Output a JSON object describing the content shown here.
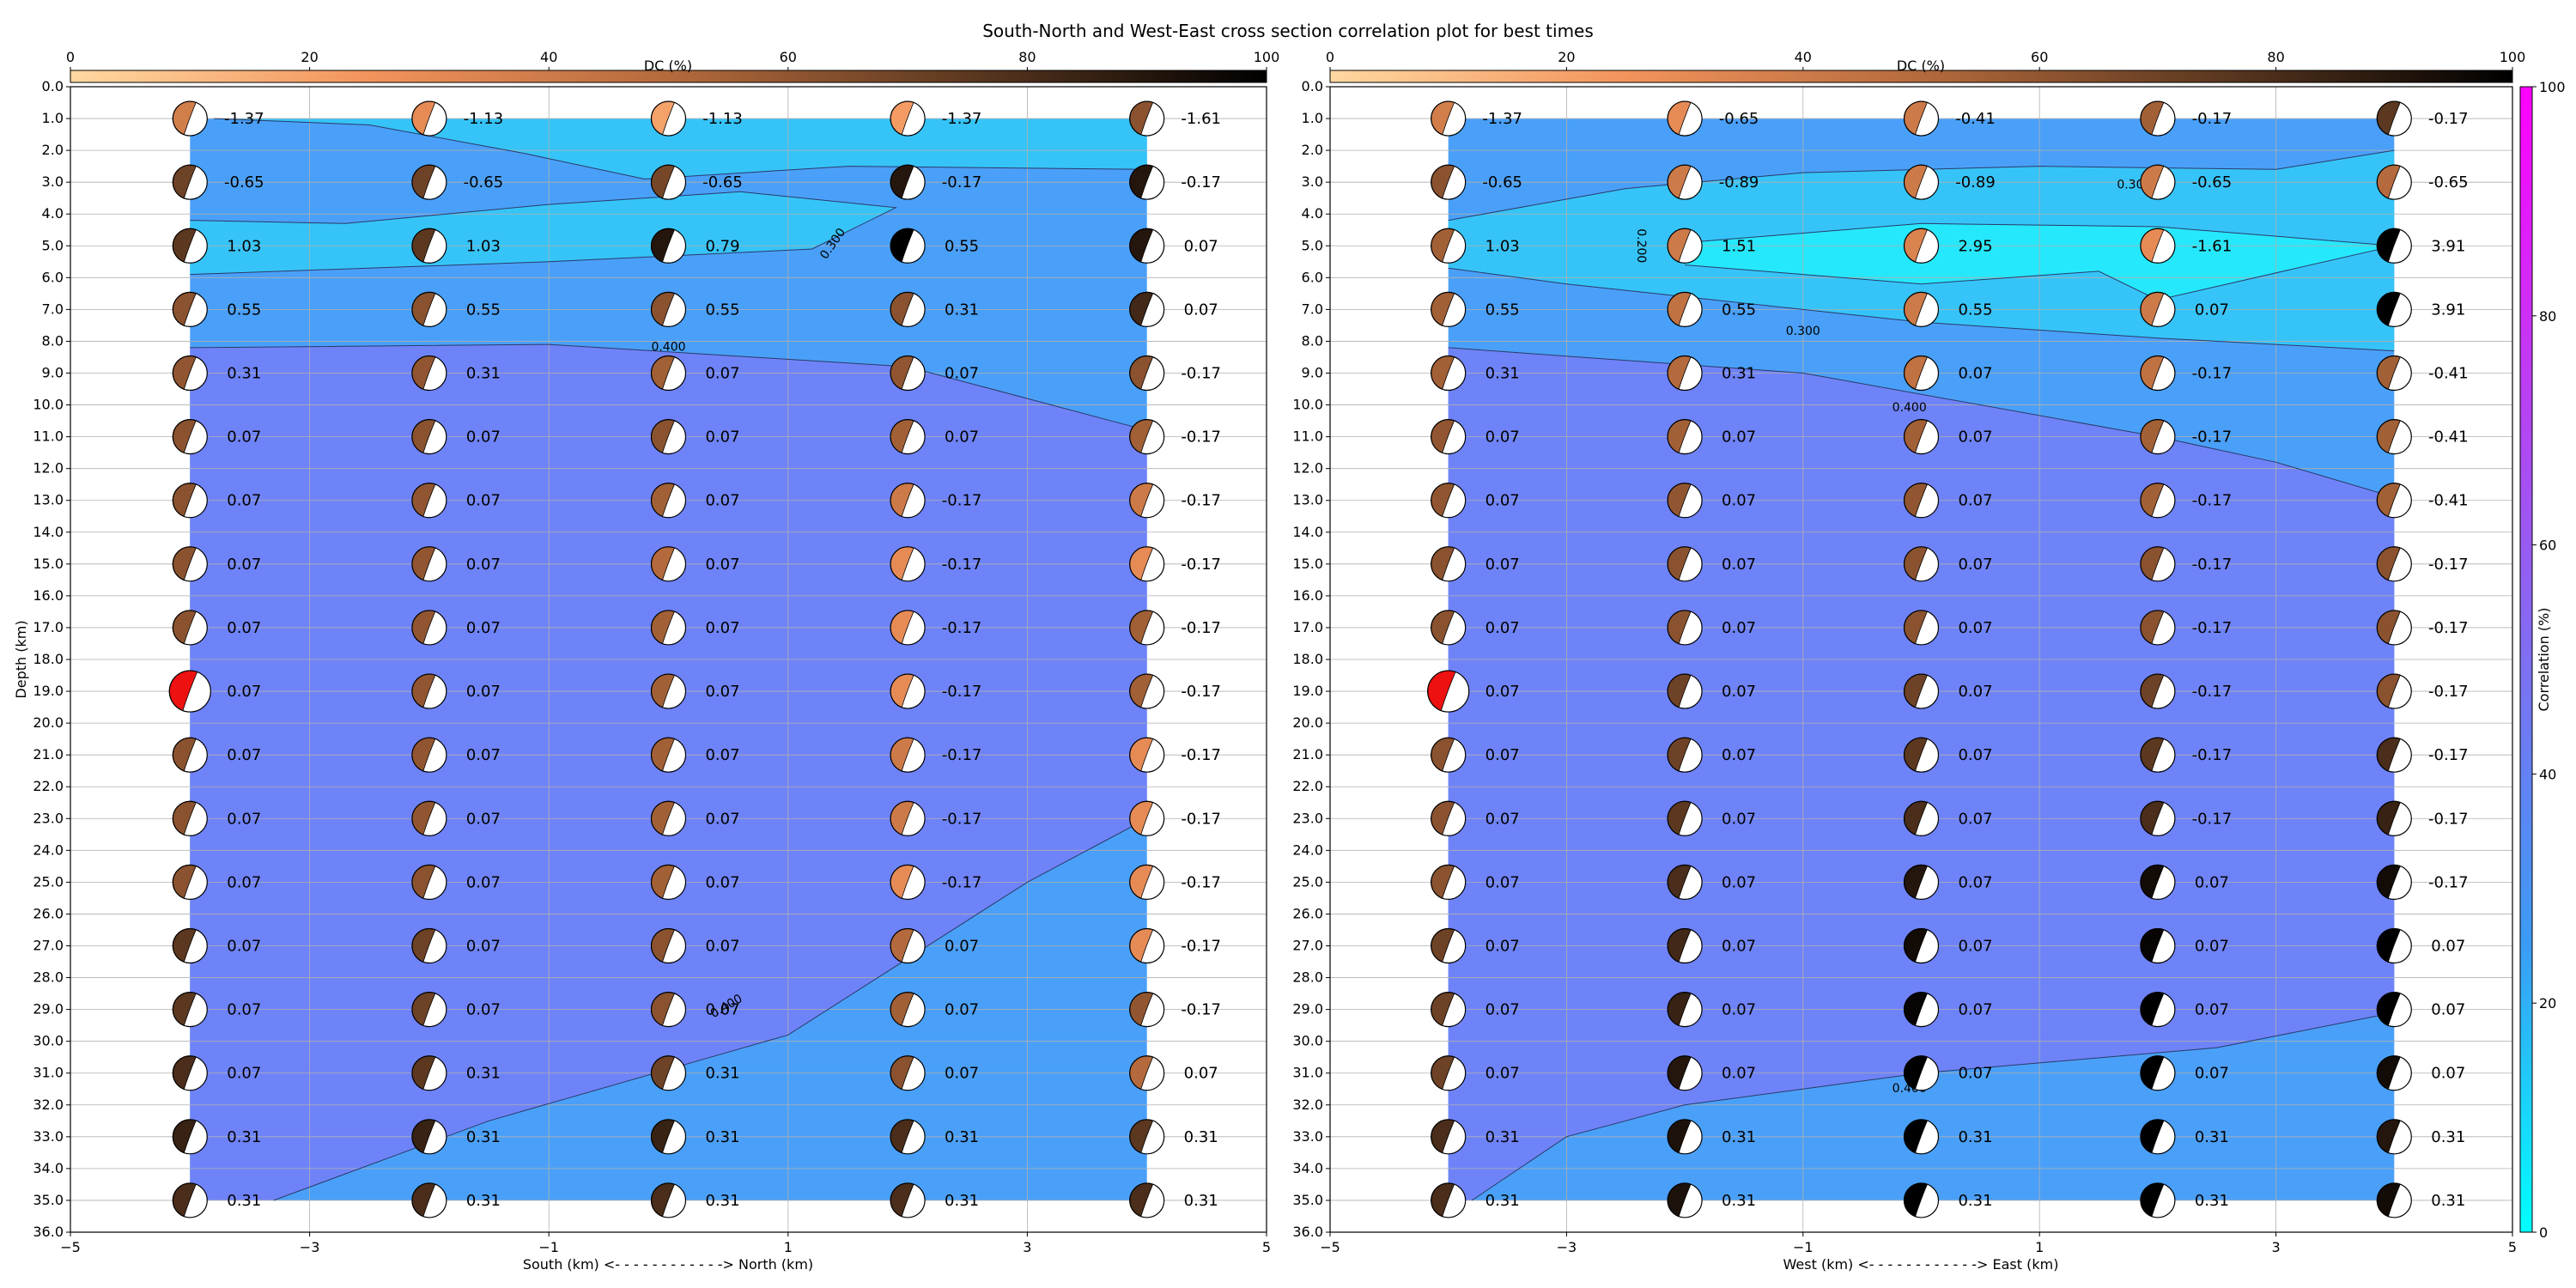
{
  "title": "South-North and West-East cross section correlation plot for best times",
  "colors": {
    "background": "#ffffff",
    "grid": "#b0b0b0",
    "fill_030_040": "#4aa0f8",
    "fill_040_plus": "#6f83f8",
    "fill_020_030": "#36c4f8",
    "fill_high": "#26e8fc",
    "best_beach": "#ee1111",
    "contour_line": "#2a3a6a"
  },
  "dc_colorbar": {
    "label": "DC (%)",
    "ticks": [
      "0",
      "20",
      "40",
      "60",
      "80",
      "100"
    ],
    "stops": [
      "#ffd8a0",
      "#f2935c",
      "#b46a3c",
      "#5c3820",
      "#000000"
    ]
  },
  "corr_colorbar": {
    "label": "Correlation (%)",
    "ticks": [
      "0",
      "20",
      "40",
      "60",
      "80",
      "100"
    ],
    "stops": [
      "#00ffff",
      "#3b9cf5",
      "#7f6ff2",
      "#bf3cf3",
      "#ff00ff"
    ]
  },
  "chart_data": [
    {
      "type": "contour",
      "xlabel": "South (km) <- - - - - - - - - - - -> North (km)",
      "ylabel": "Depth (km)",
      "xlim": [
        -5,
        5
      ],
      "ylim": [
        36,
        0
      ],
      "xticks": [
        "−5",
        "−3",
        "−1",
        "1",
        "3",
        "5"
      ],
      "yticks": [
        "0.0",
        "1.0",
        "2.0",
        "3.0",
        "4.0",
        "5.0",
        "6.0",
        "7.0",
        "8.0",
        "9.0",
        "10.0",
        "11.0",
        "12.0",
        "13.0",
        "14.0",
        "15.0",
        "16.0",
        "17.0",
        "18.0",
        "19.0",
        "20.0",
        "21.0",
        "22.0",
        "23.0",
        "24.0",
        "25.0",
        "26.0",
        "27.0",
        "28.0",
        "29.0",
        "30.0",
        "31.0",
        "32.0",
        "33.0",
        "34.0",
        "35.0",
        "36.0"
      ],
      "x": [
        -4,
        -2,
        0,
        2,
        4
      ],
      "depths": [
        1,
        3,
        5,
        7,
        9,
        11,
        13,
        15,
        17,
        19,
        21,
        23,
        25,
        27,
        29,
        31,
        33,
        35
      ],
      "values": [
        [
          "-1.37",
          "-1.13",
          "-1.13",
          "-1.37",
          "-1.61"
        ],
        [
          "-0.65",
          "-0.65",
          "-0.65",
          "-0.17",
          "-0.17"
        ],
        [
          "1.03",
          "1.03",
          "0.79",
          "0.55",
          "0.07"
        ],
        [
          "0.55",
          "0.55",
          "0.55",
          "0.31",
          "0.07"
        ],
        [
          "0.31",
          "0.31",
          "0.07",
          "0.07",
          "-0.17"
        ],
        [
          "0.07",
          "0.07",
          "0.07",
          "0.07",
          "-0.17"
        ],
        [
          "0.07",
          "0.07",
          "0.07",
          "-0.17",
          "-0.17"
        ],
        [
          "0.07",
          "0.07",
          "0.07",
          "-0.17",
          "-0.17"
        ],
        [
          "0.07",
          "0.07",
          "0.07",
          "-0.17",
          "-0.17"
        ],
        [
          "0.07",
          "0.07",
          "0.07",
          "-0.17",
          "-0.17"
        ],
        [
          "0.07",
          "0.07",
          "0.07",
          "-0.17",
          "-0.17"
        ],
        [
          "0.07",
          "0.07",
          "0.07",
          "-0.17",
          "-0.17"
        ],
        [
          "0.07",
          "0.07",
          "0.07",
          "-0.17",
          "-0.17"
        ],
        [
          "0.07",
          "0.07",
          "0.07",
          "0.07",
          "-0.17"
        ],
        [
          "0.07",
          "0.07",
          "0.07",
          "0.07",
          "-0.17"
        ],
        [
          "0.07",
          "0.31",
          "0.31",
          "0.07",
          "0.07"
        ],
        [
          "0.31",
          "0.31",
          "0.31",
          "0.31",
          "0.31"
        ],
        [
          "0.31",
          "0.31",
          "0.31",
          "0.31",
          "0.31"
        ]
      ],
      "dc": [
        [
          38,
          30,
          20,
          22,
          62
        ],
        [
          70,
          70,
          68,
          90,
          90
        ],
        [
          75,
          75,
          90,
          100,
          90
        ],
        [
          62,
          62,
          62,
          62,
          82
        ],
        [
          60,
          60,
          55,
          60,
          62
        ],
        [
          62,
          62,
          62,
          55,
          55
        ],
        [
          62,
          60,
          55,
          40,
          40
        ],
        [
          62,
          60,
          50,
          30,
          30
        ],
        [
          62,
          60,
          55,
          30,
          55
        ],
        [
          62,
          60,
          55,
          30,
          55
        ],
        [
          62,
          60,
          55,
          40,
          30
        ],
        [
          62,
          60,
          55,
          40,
          30
        ],
        [
          62,
          62,
          55,
          30,
          30
        ],
        [
          75,
          70,
          62,
          50,
          30
        ],
        [
          75,
          70,
          62,
          55,
          60
        ],
        [
          80,
          75,
          70,
          62,
          50
        ],
        [
          85,
          85,
          85,
          80,
          75
        ],
        [
          80,
          80,
          80,
          80,
          80
        ]
      ],
      "best": {
        "x": -4,
        "depth": 19
      },
      "contour_labels": [
        "0.300",
        "0.400",
        "0.400"
      ]
    },
    {
      "type": "contour",
      "xlabel": "West (km) <- - - - - - - - - - - -> East (km)",
      "ylabel": "",
      "xlim": [
        -5,
        5
      ],
      "ylim": [
        36,
        0
      ],
      "xticks": [
        "−5",
        "−3",
        "−1",
        "1",
        "3",
        "5"
      ],
      "yticks": [
        "0.0",
        "1.0",
        "2.0",
        "3.0",
        "4.0",
        "5.0",
        "6.0",
        "7.0",
        "8.0",
        "9.0",
        "10.0",
        "11.0",
        "12.0",
        "13.0",
        "14.0",
        "15.0",
        "16.0",
        "17.0",
        "18.0",
        "19.0",
        "20.0",
        "21.0",
        "22.0",
        "23.0",
        "24.0",
        "25.0",
        "26.0",
        "27.0",
        "28.0",
        "29.0",
        "30.0",
        "31.0",
        "32.0",
        "33.0",
        "34.0",
        "35.0",
        "36.0"
      ],
      "x": [
        -4,
        -2,
        0,
        2,
        4
      ],
      "depths": [
        1,
        3,
        5,
        7,
        9,
        11,
        13,
        15,
        17,
        19,
        21,
        23,
        25,
        27,
        29,
        31,
        33,
        35
      ],
      "values": [
        [
          "-1.37",
          "-0.65",
          "-0.41",
          "-0.17",
          "-0.17"
        ],
        [
          "-0.65",
          "-0.89",
          "-0.89",
          "-0.65",
          "-0.65"
        ],
        [
          "1.03",
          "1.51",
          "2.95",
          "-1.61",
          "3.91"
        ],
        [
          "0.55",
          "0.55",
          "0.55",
          "0.07",
          "3.91"
        ],
        [
          "0.31",
          "0.31",
          "0.07",
          "-0.17",
          "-0.41"
        ],
        [
          "0.07",
          "0.07",
          "0.07",
          "-0.17",
          "-0.41"
        ],
        [
          "0.07",
          "0.07",
          "0.07",
          "-0.17",
          "-0.41"
        ],
        [
          "0.07",
          "0.07",
          "0.07",
          "-0.17",
          "-0.17"
        ],
        [
          "0.07",
          "0.07",
          "0.07",
          "-0.17",
          "-0.17"
        ],
        [
          "0.07",
          "0.07",
          "0.07",
          "-0.17",
          "-0.17"
        ],
        [
          "0.07",
          "0.07",
          "0.07",
          "-0.17",
          "-0.17"
        ],
        [
          "0.07",
          "0.07",
          "0.07",
          "-0.17",
          "-0.17"
        ],
        [
          "0.07",
          "0.07",
          "0.07",
          "0.07",
          "-0.17"
        ],
        [
          "0.07",
          "0.07",
          "0.07",
          "0.07",
          "0.07"
        ],
        [
          "0.07",
          "0.07",
          "0.07",
          "0.07",
          "0.07"
        ],
        [
          "0.07",
          "0.07",
          "0.07",
          "0.07",
          "0.07"
        ],
        [
          "0.31",
          "0.31",
          "0.31",
          "0.31",
          "0.31"
        ],
        [
          "0.31",
          "0.31",
          "0.31",
          "0.31",
          "0.31"
        ]
      ],
      "dc": [
        [
          38,
          30,
          40,
          55,
          75
        ],
        [
          62,
          40,
          40,
          40,
          50
        ],
        [
          55,
          40,
          35,
          30,
          100
        ],
        [
          55,
          45,
          40,
          40,
          100
        ],
        [
          55,
          50,
          45,
          45,
          55
        ],
        [
          60,
          55,
          55,
          55,
          55
        ],
        [
          60,
          60,
          60,
          55,
          55
        ],
        [
          62,
          62,
          62,
          62,
          62
        ],
        [
          62,
          62,
          62,
          62,
          62
        ],
        [
          62,
          70,
          70,
          70,
          62
        ],
        [
          62,
          70,
          75,
          75,
          80
        ],
        [
          62,
          75,
          80,
          80,
          85
        ],
        [
          62,
          80,
          90,
          95,
          95
        ],
        [
          70,
          82,
          95,
          98,
          100
        ],
        [
          70,
          85,
          98,
          100,
          100
        ],
        [
          70,
          90,
          100,
          100,
          95
        ],
        [
          80,
          92,
          100,
          100,
          90
        ],
        [
          80,
          92,
          100,
          100,
          95
        ]
      ],
      "best": {
        "x": -4,
        "depth": 19
      },
      "contour_labels": [
        "0.300",
        "0.300",
        "0.400",
        "0.200",
        "0.400"
      ]
    }
  ]
}
